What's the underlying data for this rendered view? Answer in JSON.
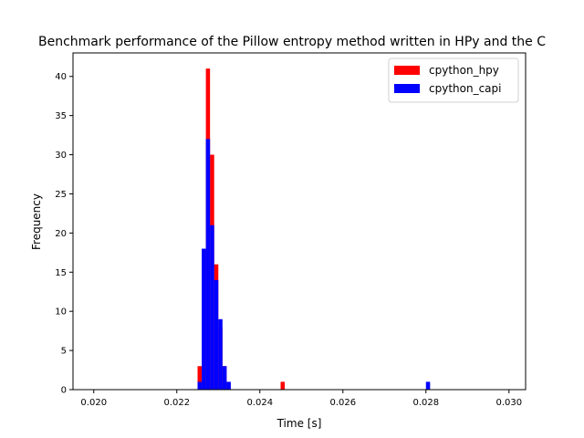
{
  "chart_data": {
    "type": "bar",
    "title": "Benchmark performance of the Pillow entropy method written in HPy and the C",
    "xlabel": "Time [s]",
    "ylabel": "Frequency",
    "xlim": [
      0.0195,
      0.0304
    ],
    "ylim": [
      0,
      43
    ],
    "xticks": [
      "0.020",
      "0.022",
      "0.024",
      "0.026",
      "0.028",
      "0.030"
    ],
    "yticks": [
      "0",
      "5",
      "10",
      "15",
      "20",
      "25",
      "30",
      "35",
      "40"
    ],
    "legend_position": "top-right",
    "grid": false,
    "bin_width": 0.0001,
    "series": [
      {
        "name": "cpython_hpy",
        "color": "#ff0000",
        "bins": [
          [
            0.0225,
            3
          ],
          [
            0.0226,
            1
          ],
          [
            0.0227,
            41
          ],
          [
            0.0228,
            30
          ],
          [
            0.0229,
            16
          ],
          [
            0.023,
            8
          ],
          [
            0.0231,
            3
          ],
          [
            0.0245,
            1
          ]
        ]
      },
      {
        "name": "cpython_capi",
        "color": "#0000ff",
        "bins": [
          [
            0.0225,
            1
          ],
          [
            0.0226,
            18
          ],
          [
            0.0227,
            32
          ],
          [
            0.0228,
            21
          ],
          [
            0.0229,
            14
          ],
          [
            0.023,
            9
          ],
          [
            0.0231,
            3
          ],
          [
            0.0232,
            1
          ],
          [
            0.028,
            1
          ]
        ]
      }
    ]
  }
}
